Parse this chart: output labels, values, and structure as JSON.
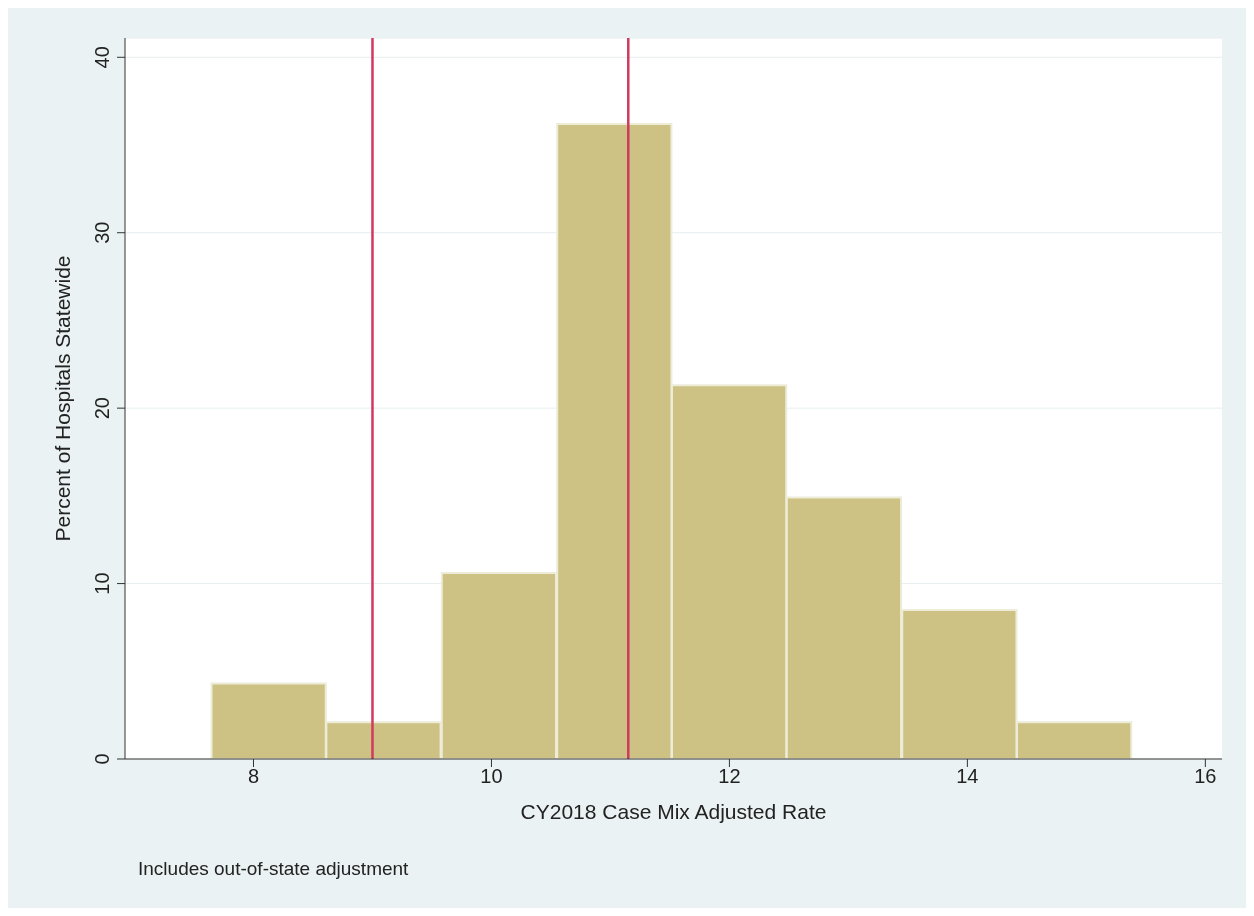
{
  "chart_data": {
    "type": "histogram",
    "xlabel": "CY2018 Case Mix Adjusted Rate",
    "ylabel": "Percent of Hospitals Statewide",
    "bins": [
      7.65,
      8.61,
      9.58,
      10.55,
      11.52,
      12.48,
      13.45,
      14.42,
      15.38
    ],
    "values": [
      4.3,
      2.1,
      10.6,
      36.2,
      21.3,
      14.9,
      8.5,
      2.1
    ],
    "color": "#cdc283",
    "xlim": [
      6.92,
      16.14
    ],
    "xticks": [
      8,
      10,
      12,
      14,
      16
    ],
    "ylim": [
      0,
      41.1
    ],
    "yticks": [
      0,
      10,
      20,
      30,
      40
    ],
    "grid": "y",
    "ref_lines": [
      {
        "axis": "x",
        "value": 9.0,
        "color": "#d1395f"
      },
      {
        "axis": "x",
        "value": 11.15,
        "color": "#d1395f"
      }
    ],
    "annotations": [
      "Includes out-of-state adjustment"
    ]
  }
}
